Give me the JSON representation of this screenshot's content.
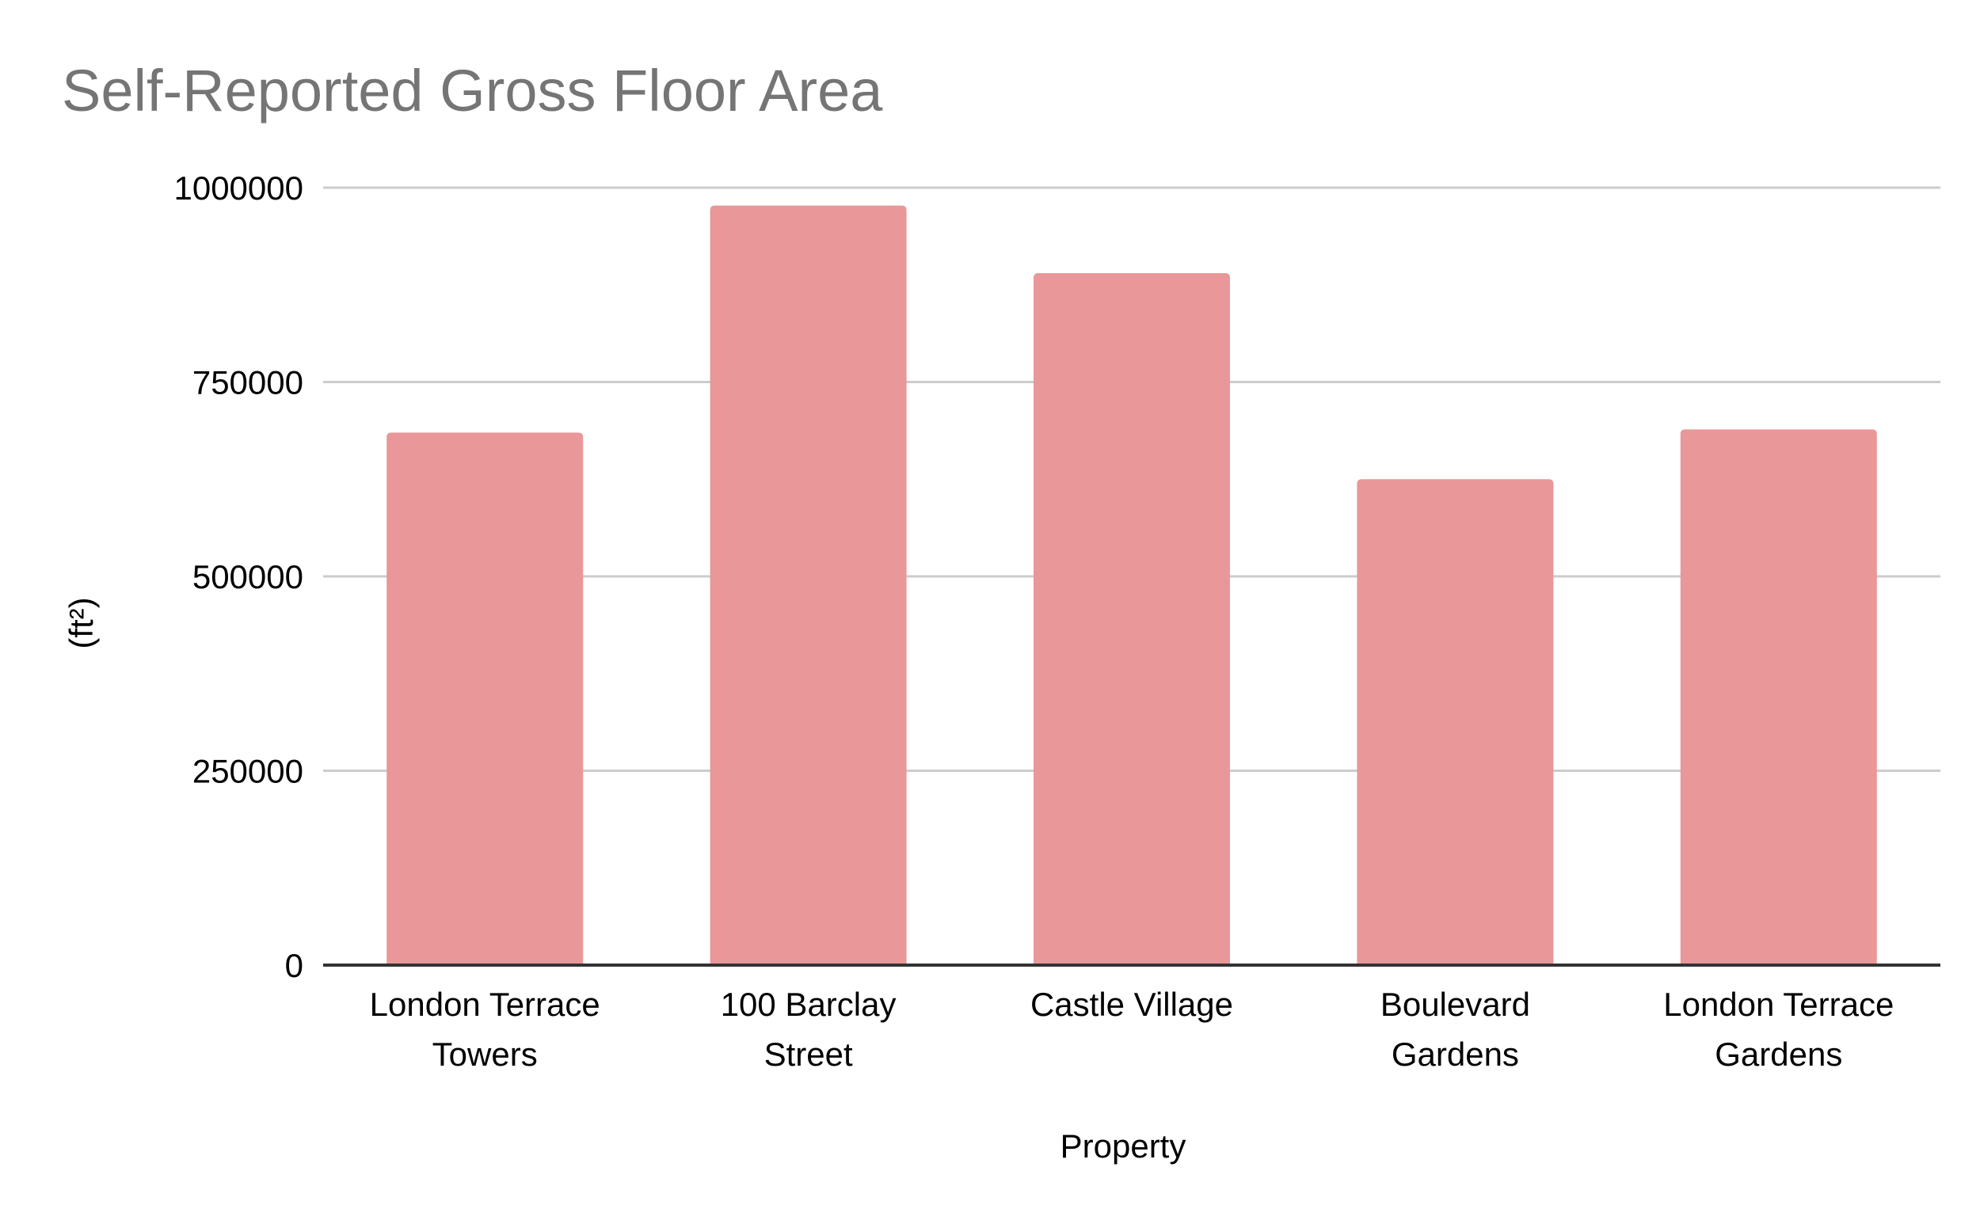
{
  "chart_data": {
    "type": "bar",
    "title": "Self-Reported Gross Floor Area",
    "xlabel": "Property",
    "ylabel": "(ft²)",
    "categories": [
      [
        "London Terrace",
        "Towers"
      ],
      [
        "100 Barclay",
        "Street"
      ],
      [
        "Castle Village"
      ],
      [
        "Boulevard",
        "Gardens"
      ],
      [
        "London Terrace",
        "Gardens"
      ]
    ],
    "values": [
      685000,
      977000,
      890000,
      625000,
      689000
    ],
    "ylim": [
      0,
      1000000
    ],
    "yticks": [
      "0",
      "250000",
      "500000",
      "750000",
      "1000000"
    ],
    "grid": true,
    "legend": "none",
    "colors": {
      "bar": "#e99799",
      "grid": "#cccccc",
      "axis": "#333333",
      "title": "#757575"
    }
  }
}
